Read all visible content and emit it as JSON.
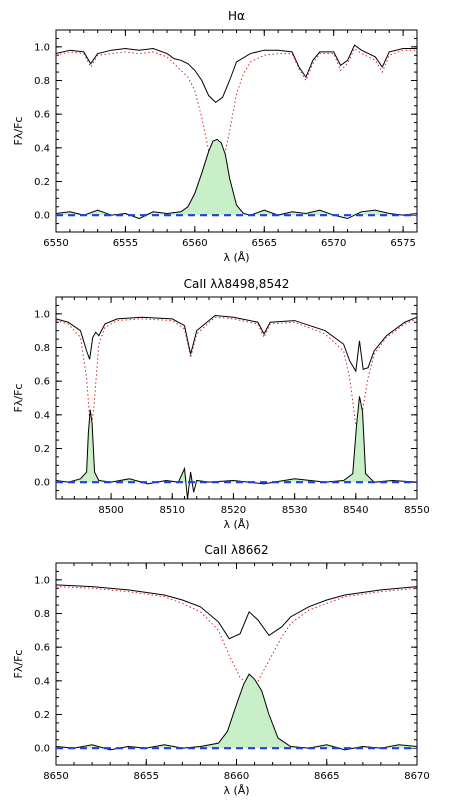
{
  "chart_data": [
    {
      "type": "line",
      "title": "Hα",
      "xlabel": "λ (Å)",
      "ylabel": "Fλ/Fc",
      "xlim": [
        6550,
        6576
      ],
      "ylim": [
        -0.1,
        1.1
      ],
      "xticks": [
        6550,
        6555,
        6560,
        6565,
        6570,
        6575
      ],
      "yticks": [
        0.0,
        0.2,
        0.4,
        0.6,
        0.8,
        1.0
      ],
      "grid": false,
      "series": [
        {
          "role": "observed",
          "color": "#000000",
          "style": "solid",
          "x": [
            6550,
            6551,
            6552,
            6552.5,
            6553,
            6554,
            6555,
            6556,
            6557,
            6558,
            6558.5,
            6559,
            6559.5,
            6560,
            6560.5,
            6561,
            6561.5,
            6562,
            6562.5,
            6563,
            6564,
            6565,
            6566,
            6567,
            6567.5,
            6568,
            6568.5,
            6569,
            6570,
            6570.5,
            6571,
            6571.5,
            6572,
            6573,
            6573.5,
            6574,
            6575,
            6576
          ],
          "y": [
            0.96,
            0.98,
            0.97,
            0.9,
            0.96,
            0.98,
            0.99,
            0.98,
            0.99,
            0.96,
            0.93,
            0.92,
            0.9,
            0.86,
            0.8,
            0.71,
            0.67,
            0.7,
            0.8,
            0.91,
            0.96,
            0.98,
            0.98,
            0.97,
            0.88,
            0.82,
            0.92,
            0.97,
            0.97,
            0.89,
            0.92,
            1.01,
            0.98,
            0.94,
            0.88,
            0.97,
            0.99,
            0.99
          ]
        },
        {
          "role": "synthetic",
          "color": "#d62728",
          "style": "dotted",
          "x": [
            6550,
            6551,
            6552,
            6552.5,
            6553,
            6554,
            6555,
            6556,
            6557,
            6558,
            6558.5,
            6559,
            6559.5,
            6560,
            6560.5,
            6561,
            6561.3,
            6561.6,
            6562,
            6562.5,
            6563,
            6563.5,
            6564,
            6565,
            6566,
            6567,
            6567.5,
            6568,
            6568.5,
            6569,
            6570,
            6570.5,
            6571,
            6571.5,
            6572,
            6573,
            6573.5,
            6574,
            6575,
            6576
          ],
          "y": [
            0.95,
            0.97,
            0.96,
            0.88,
            0.95,
            0.96,
            0.97,
            0.96,
            0.97,
            0.94,
            0.9,
            0.86,
            0.82,
            0.74,
            0.58,
            0.38,
            0.29,
            0.26,
            0.3,
            0.5,
            0.72,
            0.84,
            0.91,
            0.95,
            0.96,
            0.96,
            0.87,
            0.8,
            0.9,
            0.96,
            0.96,
            0.86,
            0.9,
            0.99,
            0.96,
            0.92,
            0.85,
            0.95,
            0.98,
            0.98
          ]
        },
        {
          "role": "subtracted",
          "color": "#000000",
          "style": "solid",
          "fill": "#c8efc8",
          "x": [
            6550,
            6551,
            6552,
            6553,
            6554,
            6555,
            6556,
            6557,
            6558,
            6559,
            6559.5,
            6560,
            6560.5,
            6561,
            6561.3,
            6561.6,
            6561.9,
            6562.2,
            6562.5,
            6563,
            6563.5,
            6564,
            6565,
            6566,
            6567,
            6568,
            6569,
            6570,
            6571,
            6572,
            6573,
            6574,
            6575,
            6576
          ],
          "y": [
            0.01,
            0.02,
            0.0,
            0.03,
            0.0,
            0.01,
            -0.02,
            0.02,
            0.01,
            0.02,
            0.05,
            0.13,
            0.25,
            0.38,
            0.44,
            0.45,
            0.43,
            0.36,
            0.22,
            0.06,
            0.01,
            0.0,
            0.03,
            0.0,
            0.02,
            0.01,
            0.03,
            0.0,
            -0.02,
            0.02,
            0.03,
            0.01,
            0.0,
            0.01
          ]
        },
        {
          "role": "zero",
          "color": "#1f3fe0",
          "style": "dashed",
          "x": [
            6550,
            6576
          ],
          "y": [
            0.0,
            0.0
          ]
        }
      ]
    },
    {
      "type": "line",
      "title": "CaII λλ8498,8542",
      "xlabel": "λ (Å)",
      "ylabel": "Fλ/Fc",
      "xlim": [
        8491,
        8550
      ],
      "ylim": [
        -0.1,
        1.1
      ],
      "xticks": [
        8500,
        8510,
        8520,
        8530,
        8540,
        8550
      ],
      "yticks": [
        0.0,
        0.2,
        0.4,
        0.6,
        0.8,
        1.0
      ],
      "grid": false,
      "series": [
        {
          "role": "observed",
          "color": "#000000",
          "style": "solid",
          "x": [
            8491,
            8493,
            8495,
            8496,
            8496.5,
            8497,
            8497.5,
            8498,
            8499,
            8501,
            8505,
            8510,
            8512,
            8513,
            8514,
            8517,
            8520,
            8524,
            8525,
            8526,
            8530,
            8535,
            8538,
            8539,
            8540,
            8540.6,
            8541.2,
            8542,
            8543,
            8545,
            8548,
            8550
          ],
          "y": [
            0.97,
            0.95,
            0.9,
            0.78,
            0.73,
            0.86,
            0.89,
            0.87,
            0.94,
            0.97,
            0.98,
            0.97,
            0.93,
            0.76,
            0.9,
            0.99,
            0.98,
            0.95,
            0.88,
            0.95,
            0.96,
            0.9,
            0.82,
            0.72,
            0.66,
            0.84,
            0.67,
            0.68,
            0.78,
            0.87,
            0.95,
            0.98
          ]
        },
        {
          "role": "synthetic",
          "color": "#d62728",
          "style": "dotted",
          "x": [
            8491,
            8493,
            8495,
            8496,
            8496.5,
            8496.8,
            8497.2,
            8498,
            8499,
            8501,
            8505,
            8510,
            8512,
            8513,
            8514,
            8517,
            8520,
            8524,
            8525,
            8526,
            8530,
            8535,
            8538,
            8539,
            8540,
            8540.6,
            8541.2,
            8542,
            8543,
            8545,
            8548,
            8550
          ],
          "y": [
            0.96,
            0.94,
            0.86,
            0.62,
            0.38,
            0.33,
            0.45,
            0.82,
            0.92,
            0.96,
            0.97,
            0.96,
            0.91,
            0.74,
            0.88,
            0.98,
            0.97,
            0.94,
            0.86,
            0.94,
            0.95,
            0.88,
            0.78,
            0.62,
            0.34,
            0.29,
            0.45,
            0.62,
            0.76,
            0.86,
            0.94,
            0.97
          ]
        },
        {
          "role": "subtracted",
          "color": "#000000",
          "style": "solid",
          "fill": "#c8efc8",
          "x": [
            8491,
            8493,
            8495,
            8496,
            8496.3,
            8496.6,
            8496.9,
            8497.3,
            8498,
            8500,
            8503,
            8506,
            8509,
            8511,
            8512,
            8512.5,
            8513,
            8513.5,
            8514,
            8516,
            8520,
            8525,
            8530,
            8535,
            8538,
            8539.5,
            8540.1,
            8540.6,
            8541.1,
            8541.6,
            8543,
            8546,
            8550
          ],
          "y": [
            0.01,
            0.0,
            0.02,
            0.06,
            0.3,
            0.43,
            0.35,
            0.06,
            0.01,
            0.0,
            0.02,
            -0.01,
            0.01,
            0.0,
            0.08,
            -0.1,
            0.06,
            -0.06,
            0.01,
            0.0,
            0.01,
            -0.01,
            0.02,
            0.0,
            0.01,
            0.05,
            0.33,
            0.51,
            0.42,
            0.05,
            0.0,
            0.01,
            0.0
          ]
        },
        {
          "role": "zero",
          "color": "#1f3fe0",
          "style": "dashed",
          "x": [
            8491,
            8550
          ],
          "y": [
            0.0,
            0.0
          ]
        }
      ]
    },
    {
      "type": "line",
      "title": "CaII λ8662",
      "xlabel": "λ (Å)",
      "ylabel": "Fλ/Fc",
      "xlim": [
        8650,
        8670
      ],
      "ylim": [
        -0.1,
        1.1
      ],
      "xticks": [
        8650,
        8655,
        8660,
        8665,
        8670
      ],
      "yticks": [
        0.0,
        0.2,
        0.4,
        0.6,
        0.8,
        1.0
      ],
      "grid": false,
      "series": [
        {
          "role": "observed",
          "color": "#000000",
          "style": "solid",
          "x": [
            8650,
            8652,
            8654,
            8656,
            8657,
            8658,
            8659,
            8659.6,
            8660.2,
            8660.7,
            8661.2,
            8661.8,
            8662.5,
            8663,
            8664,
            8665,
            8666,
            8668,
            8670
          ],
          "y": [
            0.97,
            0.96,
            0.94,
            0.91,
            0.88,
            0.84,
            0.75,
            0.65,
            0.68,
            0.81,
            0.76,
            0.67,
            0.72,
            0.78,
            0.84,
            0.88,
            0.91,
            0.94,
            0.96
          ]
        },
        {
          "role": "synthetic",
          "color": "#d62728",
          "style": "dotted",
          "x": [
            8650,
            8652,
            8654,
            8656,
            8657,
            8658,
            8659,
            8659.6,
            8660.2,
            8660.7,
            8661.2,
            8661.8,
            8662.5,
            8663,
            8664,
            8665,
            8666,
            8668,
            8670
          ],
          "y": [
            0.96,
            0.95,
            0.93,
            0.9,
            0.86,
            0.81,
            0.7,
            0.55,
            0.42,
            0.37,
            0.4,
            0.52,
            0.66,
            0.74,
            0.82,
            0.86,
            0.9,
            0.93,
            0.95
          ]
        },
        {
          "role": "subtracted",
          "color": "#000000",
          "style": "solid",
          "fill": "#c8efc8",
          "x": [
            8650,
            8651,
            8652,
            8653,
            8654,
            8655,
            8656,
            8657,
            8658,
            8659,
            8659.5,
            8660,
            8660.4,
            8660.7,
            8661,
            8661.4,
            8661.8,
            8662.3,
            8663,
            8664,
            8665,
            8666,
            8667,
            8668,
            8669,
            8670
          ],
          "y": [
            0.01,
            0.0,
            0.02,
            -0.01,
            0.01,
            0.0,
            0.02,
            0.0,
            0.01,
            0.03,
            0.1,
            0.26,
            0.38,
            0.44,
            0.41,
            0.34,
            0.2,
            0.06,
            0.01,
            0.0,
            0.02,
            -0.01,
            0.01,
            0.0,
            0.02,
            0.01
          ]
        },
        {
          "role": "zero",
          "color": "#1f3fe0",
          "style": "dashed",
          "x": [
            8650,
            8670
          ],
          "y": [
            0.0,
            0.0
          ]
        }
      ]
    }
  ]
}
